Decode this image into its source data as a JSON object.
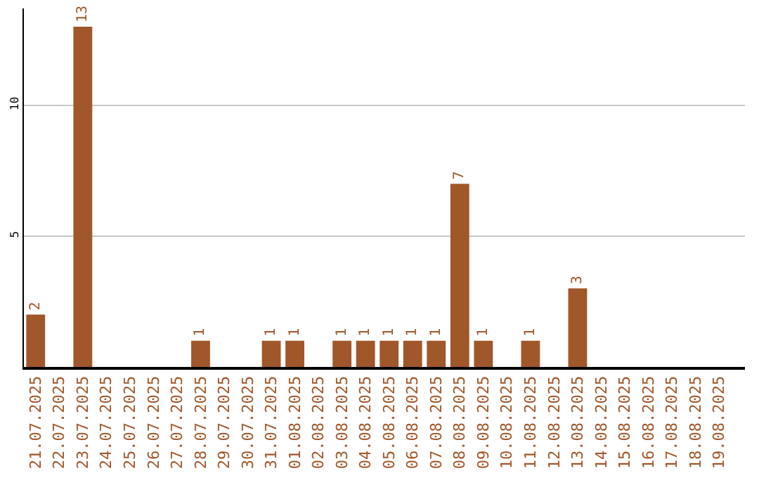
{
  "chart_data": {
    "type": "bar",
    "categories": [
      "21.07.2025",
      "22.07.2025",
      "23.07.2025",
      "24.07.2025",
      "25.07.2025",
      "26.07.2025",
      "27.07.2025",
      "28.07.2025",
      "29.07.2025",
      "30.07.2025",
      "31.07.2025",
      "01.08.2025",
      "02.08.2025",
      "03.08.2025",
      "04.08.2025",
      "05.08.2025",
      "06.08.2025",
      "07.08.2025",
      "08.08.2025",
      "09.08.2025",
      "10.08.2025",
      "11.08.2025",
      "12.08.2025",
      "13.08.2025",
      "14.08.2025",
      "15.08.2025",
      "16.08.2025",
      "17.08.2025",
      "18.08.2025",
      "19.08.2025"
    ],
    "values": [
      2,
      0,
      13,
      0,
      0,
      0,
      0,
      1,
      0,
      0,
      1,
      1,
      0,
      1,
      1,
      1,
      1,
      1,
      7,
      1,
      0,
      1,
      0,
      3,
      0,
      0,
      0,
      0,
      0,
      0
    ],
    "value_labels": [
      "2",
      null,
      "13",
      null,
      null,
      null,
      null,
      "1",
      null,
      null,
      "1",
      "1",
      null,
      "1",
      "1",
      "1",
      "1",
      "1",
      "7",
      "1",
      null,
      "1",
      null,
      "3",
      null,
      null,
      null,
      null,
      null,
      null
    ],
    "color": "#a0572a",
    "ylim": [
      0,
      13.7
    ],
    "yticks": [
      5,
      10
    ],
    "grid": "y",
    "legend": false
  }
}
